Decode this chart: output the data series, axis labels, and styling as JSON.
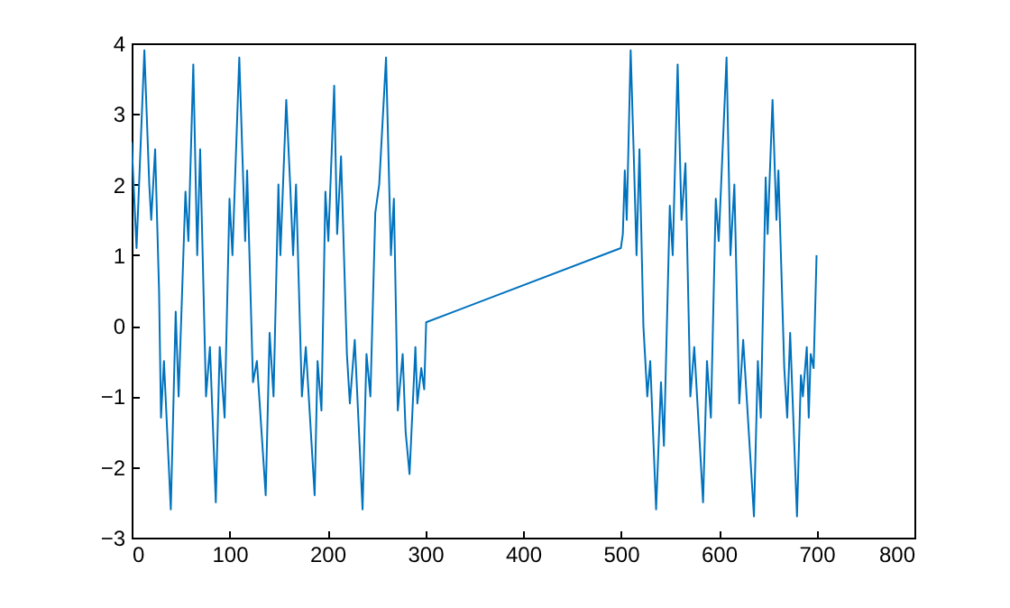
{
  "chart_data": {
    "type": "line",
    "xlim": [
      0,
      800
    ],
    "xticks": [
      0,
      100,
      200,
      300,
      400,
      500,
      600,
      700,
      800
    ],
    "ylim": [
      -3,
      4
    ],
    "yticks": [
      -3,
      -2,
      -1,
      0,
      1,
      2,
      3,
      4
    ],
    "grid": false,
    "x": [
      0,
      5,
      13,
      18,
      20,
      24,
      28,
      30,
      33,
      40,
      42,
      45,
      48,
      55,
      58,
      63,
      67,
      70,
      76,
      80,
      86,
      90,
      95,
      100,
      103,
      110,
      116,
      118,
      124,
      128,
      137,
      141,
      145,
      150,
      152,
      158,
      162,
      165,
      168,
      174,
      178,
      187,
      190,
      194,
      198,
      201,
      207,
      210,
      214,
      220,
      223,
      228,
      236,
      240,
      244,
      249,
      253,
      260,
      265,
      268,
      272,
      277,
      280,
      284,
      290,
      292,
      296,
      299,
      301,
      500,
      502,
      504,
      506,
      510,
      513,
      516,
      519,
      523,
      527,
      530,
      536,
      541,
      544,
      550,
      553,
      558,
      562,
      566,
      571,
      575,
      584,
      588,
      592,
      597,
      600,
      608,
      612,
      616,
      621,
      625,
      636,
      640,
      643,
      648,
      650,
      655,
      659,
      661,
      667,
      670,
      673,
      680,
      684,
      686,
      690,
      692,
      694,
      697,
      700
    ],
    "series": [
      {
        "color": "#0072bd",
        "values": [
          2.6,
          1.1,
          3.9,
          2.0,
          1.5,
          2.5,
          0.5,
          -1.3,
          -0.5,
          -2.6,
          -1.5,
          0.2,
          -1.0,
          1.9,
          1.2,
          3.7,
          1.0,
          2.5,
          -1.0,
          -0.3,
          -2.5,
          -0.3,
          -1.3,
          1.8,
          1.0,
          3.8,
          1.2,
          2.2,
          -0.8,
          -0.5,
          -2.4,
          -0.1,
          -1.0,
          2.0,
          1.0,
          3.2,
          2.0,
          1.0,
          2.0,
          -1.0,
          -0.3,
          -2.4,
          -0.5,
          -1.2,
          1.9,
          1.2,
          3.4,
          1.3,
          2.4,
          -0.4,
          -1.1,
          -0.2,
          -2.6,
          -0.4,
          -1.0,
          1.6,
          2.0,
          3.8,
          1.0,
          1.8,
          -1.2,
          -0.4,
          -1.5,
          -2.1,
          -0.3,
          -1.1,
          -0.6,
          -0.9,
          0.05,
          1.1,
          1.3,
          2.2,
          1.5,
          3.9,
          2.5,
          1.0,
          2.5,
          0.0,
          -1.0,
          -0.5,
          -2.6,
          -0.8,
          -1.7,
          1.7,
          1.0,
          3.7,
          1.5,
          2.3,
          -1.0,
          -0.3,
          -2.5,
          -0.5,
          -1.3,
          1.8,
          1.2,
          3.8,
          1.0,
          2.0,
          -1.1,
          -0.2,
          -2.7,
          -0.5,
          -1.3,
          2.1,
          1.3,
          3.2,
          1.5,
          2.2,
          -0.6,
          -1.3,
          -0.1,
          -2.7,
          -0.7,
          -1.0,
          -0.3,
          -1.3,
          -0.4,
          -0.6,
          1.0
        ]
      }
    ]
  }
}
